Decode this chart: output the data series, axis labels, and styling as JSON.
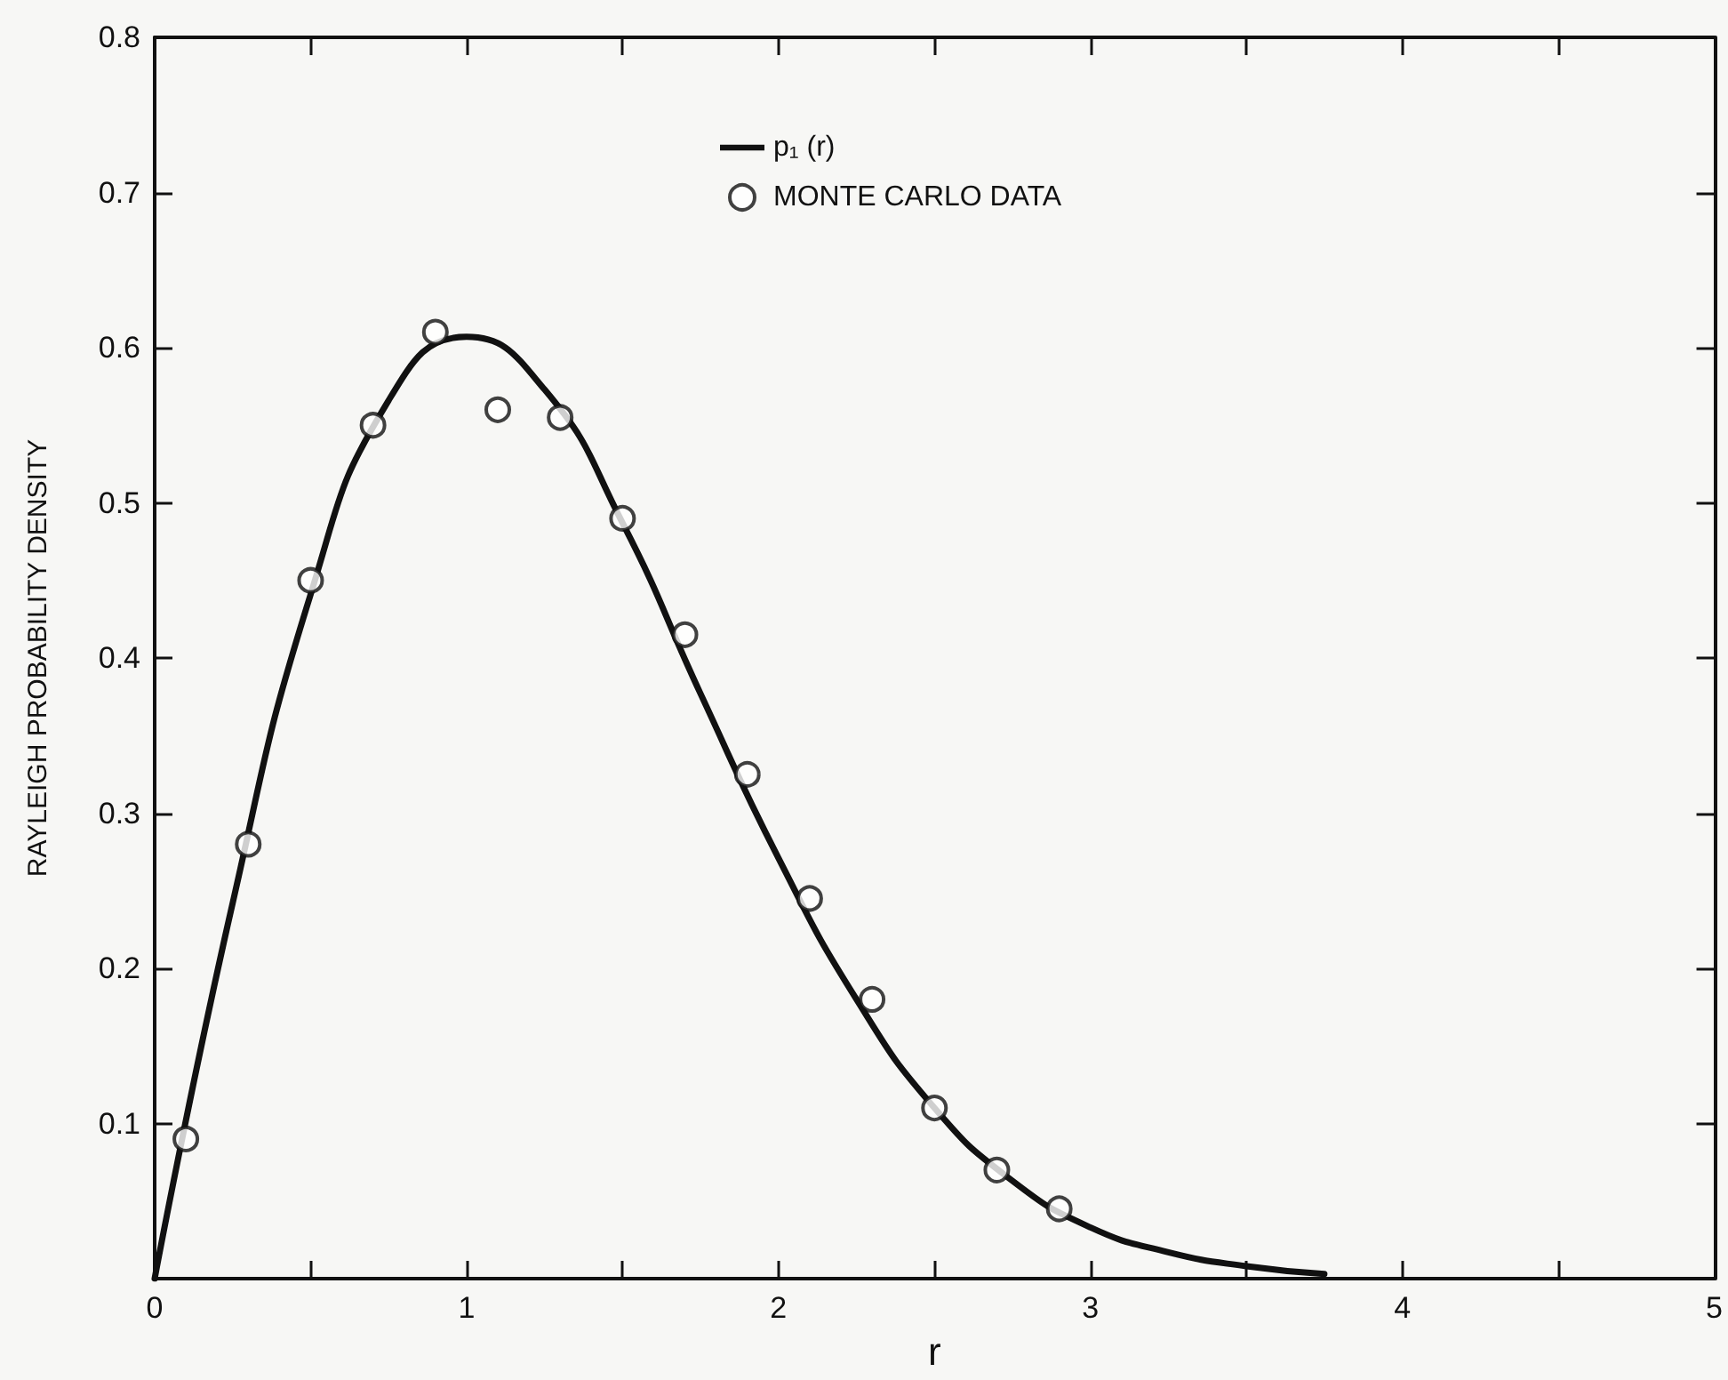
{
  "chart_data": {
    "type": "line",
    "xlabel": "r",
    "ylabel": "RAYLEIGH PROBABILITY DENSITY",
    "xlim": [
      0,
      5
    ],
    "ylim": [
      0,
      0.8
    ],
    "xticks": [
      0,
      {
        "value": 0.5,
        "label": null
      },
      1,
      {
        "value": 1.5,
        "label": null
      },
      2,
      {
        "value": 2.5,
        "label": null
      },
      3,
      {
        "value": 3.5,
        "label": null
      },
      4,
      {
        "value": 4.5,
        "label": null
      },
      5
    ],
    "yticks": [
      0.1,
      0.2,
      0.3,
      0.4,
      0.5,
      0.6,
      0.7,
      0.8
    ],
    "grid": false,
    "legend": "top",
    "line_style": "solid",
    "series": [
      {
        "name": "p₁ (r)",
        "marker": "none",
        "color": "#111111",
        "x": [
          0,
          0.25,
          0.5,
          0.75,
          1,
          1.25,
          1.5,
          1.75,
          2,
          2.25,
          2.5,
          2.75,
          3,
          3.25,
          3.5,
          3.75
        ],
        "values": [
          0,
          0.242,
          0.441,
          0.566,
          0.607,
          0.573,
          0.487,
          0.377,
          0.271,
          0.18,
          0.11,
          0.063,
          0.033,
          0.017,
          0.008,
          0.003
        ]
      },
      {
        "name": "MONTE CARLO DATA",
        "type": "scatter",
        "marker": "circle",
        "color": "#111111",
        "x": [
          0.1,
          0.3,
          0.5,
          0.7,
          0.9,
          1.1,
          1.3,
          1.5,
          1.7,
          1.9,
          2.1,
          2.3,
          2.5,
          2.7,
          2.9
        ],
        "values": [
          0.09,
          0.28,
          0.45,
          0.55,
          0.61,
          0.56,
          0.555,
          0.49,
          0.415,
          0.325,
          0.245,
          0.18,
          0.11,
          0.07,
          0.045
        ]
      }
    ]
  }
}
